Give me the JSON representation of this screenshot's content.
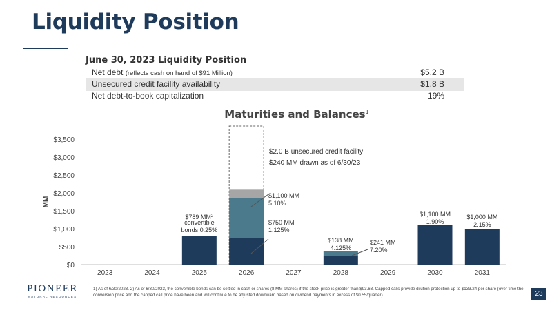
{
  "slide": {
    "title": "Liquidity Position",
    "page_number": "23",
    "footnote": "1) As of 6/30/2023. 2) As of 6/30/2023, the convertible bonds can be settled in cash or shares (8 MM shares) if the stock price is greater than $93.63. Capped calls provide dilution protection up to $133.24 per share (over time the conversion price and the capped call price have been and will continue to be adjusted downward based on dividend payments in excess of $0.55/quarter)."
  },
  "logo": {
    "name": "PIONEER",
    "sub": "NATURAL RESOURCES"
  },
  "liquidity": {
    "heading": "June 30, 2023 Liquidity Position",
    "rows": [
      {
        "label": "Net debt",
        "note": "(reflects cash on hand of $91 Million)",
        "value": "$5.2 B"
      },
      {
        "label": "Unsecured credit facility availability",
        "note": "",
        "value": "$1.8 B"
      },
      {
        "label": "Net debt-to-book capitalization",
        "note": "",
        "value": "19%"
      }
    ]
  },
  "colors": {
    "navy": "#1f3b5c",
    "teal": "#4a7a8c",
    "gray": "#a6a6a6",
    "axis_text": "#444444"
  },
  "chart_data": {
    "type": "bar",
    "title": "Maturities and Balances",
    "title_footnote": "1",
    "ylabel": "MM",
    "ylim": [
      0,
      3500
    ],
    "yticks": [
      0,
      500,
      1000,
      1500,
      2000,
      2500,
      3000,
      3500
    ],
    "ytick_labels": [
      "$0",
      "$500",
      "$1,000",
      "$1,500",
      "$2,000",
      "$2,500",
      "$3,000",
      "$3,500"
    ],
    "categories": [
      "2023",
      "2024",
      "2025",
      "2026",
      "2027",
      "2028",
      "2029",
      "2030",
      "2031"
    ],
    "series": [
      {
        "values": [
          0,
          0,
          789,
          750,
          0,
          241,
          0,
          1100,
          1000
        ]
      },
      {
        "values": [
          0,
          0,
          0,
          1100,
          0,
          138,
          0,
          0,
          0
        ]
      },
      {
        "values": [
          0,
          0,
          0,
          240,
          0,
          0,
          0,
          0,
          0
        ]
      }
    ],
    "facility_total": 2000,
    "facility_category": "2026",
    "annotations": {
      "bond_2025": [
        "$789 MM",
        "convertible",
        "bonds 0.25%"
      ],
      "bond_2025_footnote": "2",
      "facility": [
        "$2.0 B unsecured credit facility",
        "$240 MM drawn as of 6/30/23"
      ],
      "note_1100_2026": [
        "$1,100 MM",
        "5.10%"
      ],
      "note_750_2026": [
        "$750 MM",
        "1.125%"
      ],
      "note_138_2028": [
        "$138 MM",
        "4.125%"
      ],
      "note_241_2028": [
        "$241 MM",
        "7.20%"
      ],
      "note_1100_2030": [
        "$1,100 MM",
        "1.90%"
      ],
      "note_1000_2031": [
        "$1,000 MM",
        "2.15%"
      ]
    }
  }
}
